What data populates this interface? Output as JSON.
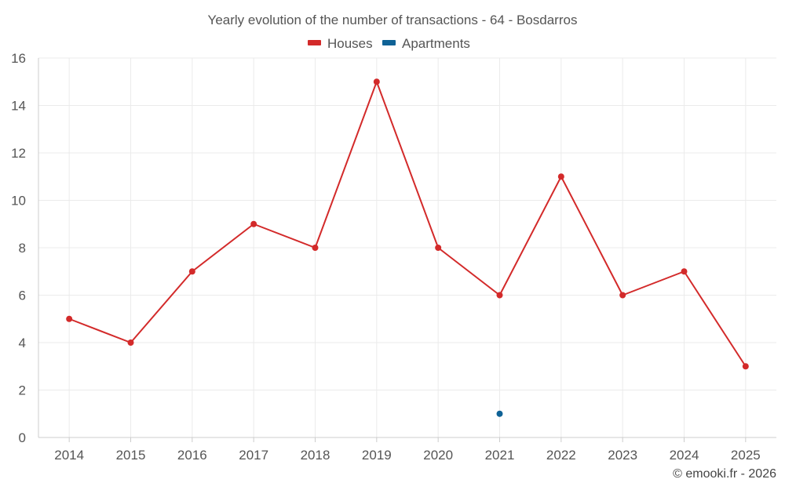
{
  "chart_data": {
    "type": "line",
    "title": "Yearly evolution of the number of transactions - 64 - Bosdarros",
    "categories": [
      "2014",
      "2015",
      "2016",
      "2017",
      "2018",
      "2019",
      "2020",
      "2021",
      "2022",
      "2023",
      "2024",
      "2025"
    ],
    "series": [
      {
        "name": "Houses",
        "color": "#d32a2a",
        "values": [
          5,
          4,
          7,
          9,
          8,
          15,
          8,
          6,
          11,
          6,
          7,
          3
        ]
      },
      {
        "name": "Apartments",
        "color": "#0f6296",
        "values": [
          null,
          null,
          null,
          null,
          null,
          null,
          null,
          1,
          null,
          null,
          null,
          null
        ]
      }
    ],
    "ylim": [
      0,
      16
    ],
    "yticks": [
      0,
      2,
      4,
      6,
      8,
      10,
      12,
      14,
      16
    ],
    "grid": true,
    "legend_position": "top-center",
    "xlabel": "",
    "ylabel": ""
  },
  "credit": "© emooki.fr - 2026"
}
